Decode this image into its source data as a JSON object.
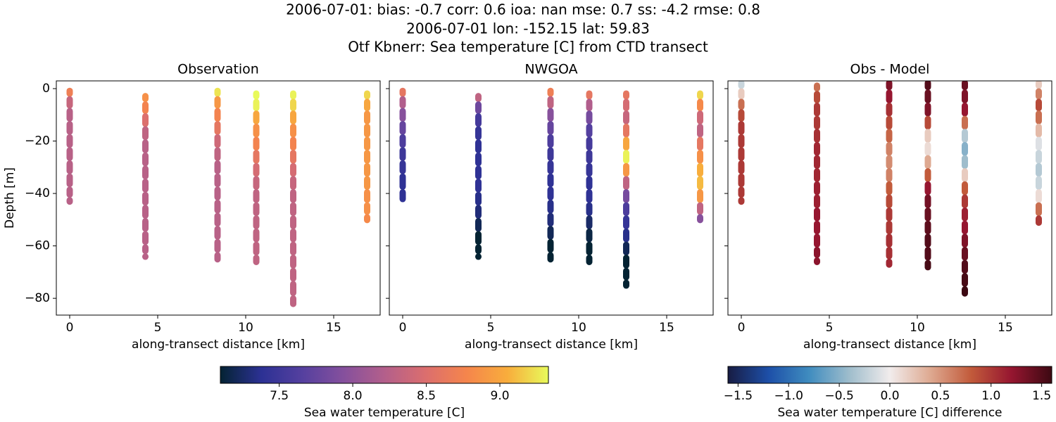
{
  "title": [
    "2006-07-01: bias: -0.7  corr: 0.6  ioa: nan  mse: 0.7  ss: -4.2  rmse: 0.8",
    "2006-07-01 lon: -152.15 lat: 59.83",
    "Otf Kbnerr: Sea temperature [C] from CTD transect"
  ],
  "colorbars": [
    {
      "label": "Sea water temperature [C]",
      "lim": [
        7.1,
        9.33
      ],
      "ticks": [
        7.5,
        {
          "value": 8.0,
          "label": "8.0"
        },
        8.5,
        {
          "value": 9.0,
          "label": "9.0"
        }
      ],
      "colormap": [
        "#042333",
        "#2c3194",
        "#55409f",
        "#85509d",
        "#b35f8b",
        "#db6e6e",
        "#f5854c",
        "#f8ad3c",
        "#e8fa5b"
      ]
    },
    {
      "label": "Sea water temperature [C] difference",
      "lim": [
        -1.6,
        1.6
      ],
      "ticks": [
        {
          "value": -1.5,
          "label": "−1.5"
        },
        {
          "value": -1.0,
          "label": "−1.0"
        },
        {
          "value": -0.5,
          "label": "−0.5"
        },
        {
          "value": 0.0,
          "label": "0.0"
        },
        0.5,
        {
          "value": 1.0,
          "label": "1.0"
        },
        1.5
      ],
      "colormap": [
        "#181c43",
        "#1d4fa8",
        "#3f8cbf",
        "#9fbdcc",
        "#f1ecec",
        "#dea991",
        "#c25b3b",
        "#961630",
        "#3c0912"
      ]
    }
  ],
  "chart_data": [
    {
      "type": "scatter",
      "title": "Observation",
      "xlabel": "along-transect distance [km]",
      "ylabel": "Depth [m]",
      "colorbar": 0,
      "show_ytick_labels": true,
      "xlim": [
        -0.76,
        17.64
      ],
      "ylim": [
        -86.4,
        2.95
      ],
      "xticks": [
        0,
        5,
        10,
        15
      ],
      "yticks": [
        0,
        {
          "value": -20,
          "label": "−20"
        },
        {
          "value": -40,
          "label": "−40"
        },
        {
          "value": -60,
          "label": "−60"
        },
        {
          "value": -80,
          "label": "−80"
        }
      ],
      "casts": [
        {
          "x": 0,
          "depth": [
            -1,
            -5,
            -10,
            -15,
            -20,
            -25,
            -30,
            -35,
            -40,
            -43
          ],
          "values": [
            8.7,
            8.35,
            8.25,
            8.25,
            8.25,
            8.25,
            8.25,
            8.25,
            8.25,
            8.25
          ]
        },
        {
          "x": 4.3,
          "depth": [
            -3,
            -7,
            -12,
            -17,
            -22,
            -27,
            -32,
            -37,
            -42,
            -47,
            -52,
            -57,
            -62,
            -64
          ],
          "values": [
            8.85,
            8.75,
            8.5,
            8.3,
            8.25,
            8.25,
            8.25,
            8.25,
            8.25,
            8.25,
            8.25,
            8.25,
            8.25,
            8.25
          ]
        },
        {
          "x": 8.4,
          "depth": [
            -1,
            -5,
            -10,
            -15,
            -20,
            -25,
            -30,
            -35,
            -40,
            -45,
            -50,
            -55,
            -60,
            -65
          ],
          "values": [
            9.25,
            8.9,
            8.75,
            8.6,
            8.4,
            8.3,
            8.25,
            8.25,
            8.25,
            8.25,
            8.25,
            8.25,
            8.25,
            8.25
          ]
        },
        {
          "x": 10.6,
          "depth": [
            -2,
            -6,
            -11,
            -16,
            -21,
            -26,
            -31,
            -36,
            -41,
            -46,
            -51,
            -56,
            -61,
            -66
          ],
          "values": [
            9.35,
            9.3,
            9.0,
            8.85,
            8.75,
            8.6,
            8.45,
            8.35,
            8.3,
            8.3,
            8.3,
            8.3,
            8.3,
            8.3
          ]
        },
        {
          "x": 12.7,
          "depth": [
            -2,
            -6,
            -11,
            -16,
            -21,
            -26,
            -31,
            -36,
            -41,
            -46,
            -51,
            -56,
            -61,
            -66,
            -71,
            -76,
            -82
          ],
          "values": [
            9.3,
            9.2,
            9.0,
            8.85,
            8.75,
            8.6,
            8.45,
            8.35,
            8.3,
            8.3,
            8.3,
            8.3,
            8.3,
            8.3,
            8.3,
            8.3,
            8.3
          ]
        },
        {
          "x": 16.9,
          "depth": [
            -2,
            -6,
            -11,
            -16,
            -21,
            -26,
            -31,
            -36,
            -41,
            -46,
            -50
          ],
          "values": [
            9.2,
            9.0,
            8.9,
            8.9,
            8.9,
            8.9,
            8.9,
            8.9,
            8.85,
            8.85,
            8.8
          ]
        }
      ]
    },
    {
      "type": "scatter",
      "title": "NWGOA",
      "xlabel": "along-transect distance [km]",
      "colorbar": 0,
      "show_ytick_labels": false,
      "xlim": [
        -0.76,
        17.64
      ],
      "ylim": [
        -86.4,
        2.95
      ],
      "xticks": [
        0,
        5,
        10,
        15
      ],
      "yticks": [
        0,
        -20,
        -40,
        -60,
        -80
      ],
      "casts": [
        {
          "x": 0,
          "depth": [
            -1,
            -5,
            -10,
            -15,
            -20,
            -25,
            -30,
            -35,
            -42
          ],
          "values": [
            8.6,
            8.2,
            7.95,
            7.75,
            7.6,
            7.5,
            7.45,
            7.4,
            7.4
          ]
        },
        {
          "x": 4.3,
          "depth": [
            -3,
            -7,
            -12,
            -17,
            -22,
            -27,
            -32,
            -37,
            -42,
            -47,
            -52,
            -57,
            -62,
            -64
          ],
          "values": [
            8.3,
            7.8,
            7.55,
            7.45,
            7.4,
            7.4,
            7.4,
            7.4,
            7.35,
            7.3,
            7.2,
            7.1,
            7.05,
            7.05
          ]
        },
        {
          "x": 8.4,
          "depth": [
            -1,
            -5,
            -10,
            -15,
            -20,
            -25,
            -30,
            -35,
            -40,
            -45,
            -50,
            -55,
            -60,
            -65
          ],
          "values": [
            8.7,
            8.3,
            7.95,
            7.75,
            7.6,
            7.5,
            7.45,
            7.4,
            7.4,
            7.35,
            7.3,
            7.2,
            7.1,
            7.05
          ]
        },
        {
          "x": 10.6,
          "depth": [
            -2,
            -6,
            -11,
            -16,
            -21,
            -26,
            -31,
            -36,
            -41,
            -46,
            -51,
            -56,
            -61,
            -66
          ],
          "values": [
            8.6,
            8.2,
            7.85,
            7.65,
            7.55,
            7.5,
            7.45,
            7.4,
            7.4,
            7.35,
            7.25,
            7.15,
            7.08,
            7.05
          ]
        },
        {
          "x": 12.7,
          "depth": [
            -2,
            -6,
            -11,
            -16,
            -21,
            -26,
            -31,
            -36,
            -41,
            -46,
            -51,
            -56,
            -61,
            -66,
            -71,
            -75
          ],
          "values": [
            8.6,
            8.45,
            8.35,
            8.6,
            9.0,
            9.3,
            8.9,
            8.3,
            7.85,
            7.6,
            7.45,
            7.35,
            7.2,
            7.1,
            7.05,
            7.03
          ]
        },
        {
          "x": 16.9,
          "depth": [
            -2,
            -6,
            -11,
            -16,
            -21,
            -26,
            -31,
            -36,
            -41,
            -46,
            -50
          ],
          "values": [
            9.2,
            8.8,
            8.4,
            8.3,
            8.6,
            8.85,
            9.05,
            9.1,
            8.9,
            8.3,
            7.95
          ]
        }
      ]
    },
    {
      "type": "scatter",
      "title": "Obs - Model",
      "xlabel": "along-transect distance [km]",
      "colorbar": 1,
      "show_ytick_labels": false,
      "xlim": [
        -0.76,
        17.64
      ],
      "ylim": [
        -86.4,
        2.95
      ],
      "xticks": [
        0,
        5,
        10,
        15
      ],
      "yticks": [
        0,
        -20,
        -40,
        -60,
        -80
      ],
      "casts": [
        {
          "x": 0,
          "depth": [
            2,
            -2,
            -6,
            -10,
            -15,
            -20,
            -25,
            -30,
            -35,
            -40,
            -43
          ],
          "values": [
            -0.2,
            0.2,
            0.7,
            0.9,
            1.0,
            1.0,
            1.0,
            1.0,
            1.0,
            1.0,
            1.0
          ]
        },
        {
          "x": 4.3,
          "depth": [
            1,
            -3,
            -8,
            -13,
            -18,
            -23,
            -28,
            -33,
            -38,
            -43,
            -48,
            -53,
            -58,
            -63,
            -66
          ],
          "values": [
            0.7,
            0.9,
            1.0,
            1.0,
            1.05,
            1.1,
            1.1,
            1.1,
            1.15,
            1.15,
            1.2,
            1.2,
            1.2,
            1.25,
            1.25
          ]
        },
        {
          "x": 8.4,
          "depth": [
            2,
            -3,
            -8,
            -13,
            -18,
            -23,
            -28,
            -33,
            -38,
            -43,
            -48,
            -53,
            -58,
            -63,
            -67
          ],
          "values": [
            1.3,
            1.2,
            1.05,
            0.9,
            0.75,
            0.6,
            0.55,
            0.6,
            0.8,
            0.9,
            1.0,
            1.0,
            1.05,
            1.05,
            1.1
          ]
        },
        {
          "x": 10.6,
          "depth": [
            2,
            -3,
            -8,
            -13,
            -18,
            -23,
            -28,
            -33,
            -38,
            -43,
            -48,
            -53,
            -58,
            -63,
            -68
          ],
          "values": [
            1.5,
            1.4,
            1.3,
            0.9,
            0.2,
            0.1,
            0.4,
            0.8,
            1.2,
            1.35,
            1.4,
            1.45,
            1.5,
            1.5,
            1.55
          ]
        },
        {
          "x": 12.7,
          "depth": [
            2,
            -3,
            -8,
            -13,
            -18,
            -23,
            -28,
            -33,
            -38,
            -43,
            -48,
            -53,
            -58,
            -63,
            -68,
            -73,
            -78
          ],
          "values": [
            1.4,
            1.3,
            1.2,
            0.7,
            -0.3,
            -0.5,
            -0.4,
            0.2,
            0.8,
            1.0,
            1.15,
            1.2,
            1.3,
            1.4,
            1.5,
            1.55,
            1.6
          ]
        },
        {
          "x": 16.9,
          "depth": [
            2,
            -2,
            -6,
            -11,
            -16,
            -21,
            -26,
            -31,
            -36,
            -41,
            -46,
            -51
          ],
          "values": [
            0.2,
            0.6,
            0.9,
            0.7,
            0.3,
            -0.1,
            -0.2,
            -0.3,
            -0.2,
            0.1,
            0.7,
            1.0
          ]
        }
      ]
    }
  ]
}
